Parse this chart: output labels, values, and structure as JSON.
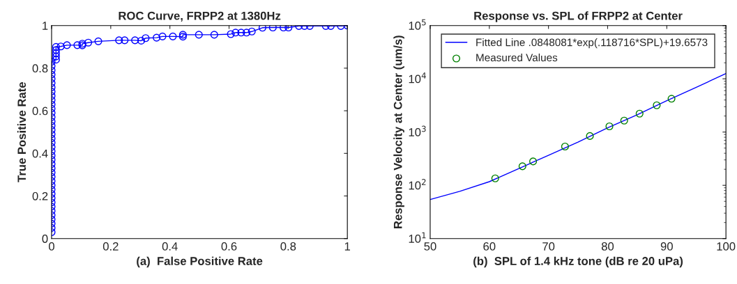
{
  "chart_data": [
    {
      "type": "line",
      "title": "ROC Curve, FRPP2 at 1380Hz",
      "xlabel": "(a)  False Positive Rate",
      "ylabel": "True Positive Rate",
      "xlim": [
        0,
        1
      ],
      "ylim": [
        0,
        1
      ],
      "xticks": [
        0,
        0.2,
        0.4,
        0.6,
        0.8,
        1
      ],
      "yticks": [
        0,
        0.2,
        0.4,
        0.6,
        0.8,
        1
      ],
      "grid": false,
      "marker": "circle",
      "line_style": "solid",
      "series": [
        {
          "color": "#0000ff",
          "x": [
            0,
            0,
            0,
            0,
            0,
            0,
            0,
            0,
            0,
            0,
            0,
            0,
            0,
            0,
            0,
            0,
            0,
            0,
            0,
            0,
            0,
            0,
            0,
            0,
            0,
            0,
            0,
            0,
            0,
            0,
            0,
            0,
            0,
            0,
            0,
            0,
            0,
            0,
            0,
            0,
            0,
            0.015,
            0.015,
            0.015,
            0.015,
            0.015,
            0.031,
            0.052,
            0.087,
            0.104,
            0.104,
            0.124,
            0.158,
            0.228,
            0.247,
            0.282,
            0.303,
            0.318,
            0.355,
            0.375,
            0.41,
            0.444,
            0.444,
            0.498,
            0.55,
            0.606,
            0.622,
            0.641,
            0.659,
            0.677,
            0.713,
            0.748,
            0.784,
            0.801,
            0.836,
            0.855,
            0.873,
            0.927,
            0.944,
            0.978,
            1
          ],
          "values": [
            0.03,
            0.05,
            0.07,
            0.09,
            0.11,
            0.13,
            0.15,
            0.17,
            0.19,
            0.21,
            0.23,
            0.25,
            0.27,
            0.29,
            0.31,
            0.33,
            0.35,
            0.37,
            0.39,
            0.41,
            0.43,
            0.45,
            0.47,
            0.49,
            0.51,
            0.53,
            0.55,
            0.57,
            0.59,
            0.61,
            0.63,
            0.65,
            0.67,
            0.69,
            0.71,
            0.73,
            0.75,
            0.77,
            0.79,
            0.81,
            0.83,
            0.84,
            0.855,
            0.87,
            0.885,
            0.9,
            0.902,
            0.908,
            0.908,
            0.907,
            0.915,
            0.92,
            0.926,
            0.931,
            0.931,
            0.931,
            0.929,
            0.941,
            0.943,
            0.949,
            0.949,
            0.948,
            0.957,
            0.957,
            0.957,
            0.96,
            0.967,
            0.967,
            0.967,
            0.972,
            0.99,
            0.991,
            0.991,
            0.991,
            0.998,
            0.998,
            0.998,
            0.998,
            0.998,
            0.998,
            1.0
          ]
        }
      ]
    },
    {
      "type": "line",
      "title": "Response vs. SPL of FRPP2 at Center",
      "xlabel": "(b)  SPL of 1.4 kHz tone (dB re 20 uPa)",
      "ylabel": "Response Velocity at Center (um/s)",
      "log": "y",
      "xlim": [
        50,
        100
      ],
      "ylim": [
        10,
        100000
      ],
      "xticks": [
        50,
        60,
        70,
        80,
        90,
        100
      ],
      "yticks": [
        {
          "value": 10,
          "label": "10$^{1}$"
        },
        {
          "value": 100,
          "label": "10$^{2}$"
        },
        {
          "value": 1000,
          "label": "10$^{3}$"
        },
        {
          "value": 10000,
          "label": "10$^{4}$"
        },
        {
          "value": 100000,
          "label": "10$^{5}$"
        }
      ],
      "grid": false,
      "legend": "top",
      "series": [
        {
          "name": "Fitted Line .0848081*exp(.118716*SPL)+19.6573",
          "color": "#0000ff",
          "marker": "none",
          "line_style": "solid",
          "x": [
            50,
            55,
            60,
            65,
            70,
            75,
            80,
            85,
            90,
            95,
            100
          ],
          "values": [
            54,
            77,
            117,
            207,
            366,
            646,
            1200,
            2110,
            3890,
            6920,
            12600
          ]
        },
        {
          "name": "Measured Values",
          "type": "scatter",
          "color": "#008000",
          "marker": "circle",
          "x": [
            61.0,
            65.6,
            67.4,
            72.8,
            77.0,
            80.3,
            82.8,
            85.4,
            88.3,
            90.8
          ],
          "values": [
            135,
            228,
            281,
            535,
            843,
            1280,
            1640,
            2220,
            3180,
            4230
          ]
        }
      ]
    }
  ]
}
